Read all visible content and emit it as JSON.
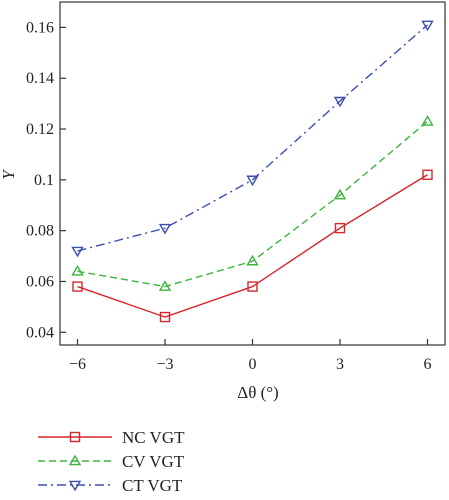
{
  "chart_data": {
    "type": "line",
    "x": [
      -6,
      -3,
      0,
      3,
      6
    ],
    "x_tick_labels": [
      "−6",
      "−3",
      "0",
      "3",
      "6"
    ],
    "xlim": [
      -6.6,
      6.6
    ],
    "ylim": [
      0.035,
      0.17
    ],
    "y_ticks": [
      0.04,
      0.06,
      0.08,
      0.1,
      0.12,
      0.14,
      0.16
    ],
    "y_tick_labels": [
      "0.04",
      "0.06",
      "0.08",
      "0.1",
      "0.12",
      "0.14",
      "0.16"
    ],
    "xlabel": "Δθ (°)",
    "ylabel": "Y",
    "grid": false,
    "legend_position": "bottom",
    "series": [
      {
        "name": "NC VGT",
        "values": [
          0.058,
          0.046,
          0.058,
          0.081,
          0.102
        ],
        "color": "#d6262b",
        "marker": "square",
        "dash": "solid"
      },
      {
        "name": "CV VGT",
        "values": [
          0.064,
          0.058,
          0.068,
          0.094,
          0.123
        ],
        "color": "#3cb43c",
        "marker": "triangle-up",
        "dash": "dashed"
      },
      {
        "name": "CT VGT",
        "values": [
          0.072,
          0.081,
          0.1,
          0.131,
          0.161
        ],
        "color": "#3a4fb0",
        "marker": "triangle-down",
        "dash": "dashdot"
      }
    ]
  }
}
